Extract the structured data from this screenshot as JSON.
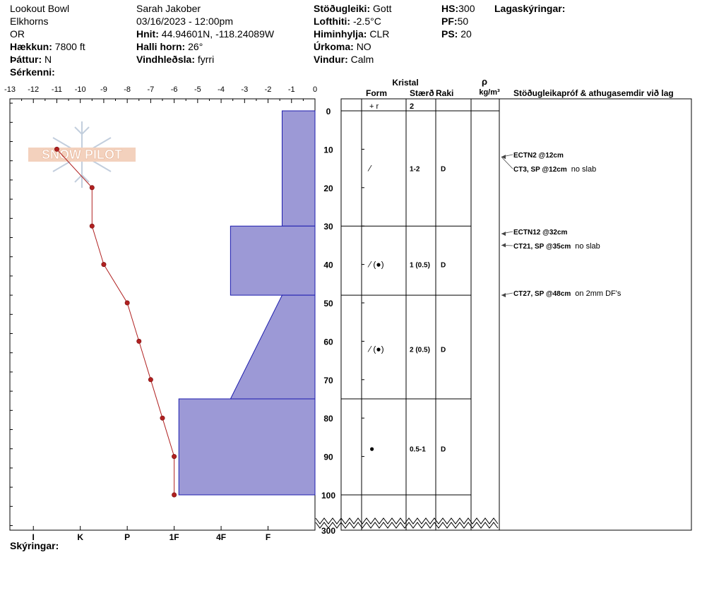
{
  "header": {
    "location": "Lookout Bowl",
    "range": "Elkhorns",
    "state": "OR",
    "elevation_label": "Hækkun:",
    "elevation": "7800 ft",
    "aspect_label": "Þáttur:",
    "aspect": "N",
    "specifics_label": "Sérkenni:",
    "observer": "Sarah Jakober",
    "datetime": "03/16/2023 - 12:00pm",
    "coords_label": "Hnit:",
    "coords": "44.94601N, -118.24089W",
    "slope_label": "Halli horn:",
    "slope": "26°",
    "wind_loading_label": "Vindhleðsla:",
    "wind_loading": "fyrri",
    "stability_label": "Stöðugleiki:",
    "stability": "Gott",
    "air_temp_label": "Lofthiti:",
    "air_temp": "-2.5°C",
    "sky_label": "Himinhylja:",
    "sky": "CLR",
    "precip_label": "Úrkoma:",
    "precip": "NO",
    "wind_label": "Vindur:",
    "wind": "Calm",
    "hs_label": "HS:",
    "hs": "300",
    "pf_label": "PF:",
    "pf": "50",
    "ps_label": "PS:",
    "ps": "20",
    "layer_notes_label": "Lagaskýringar:",
    "legend_label": "Skýringar:"
  },
  "columns": {
    "crystal": "Kristal",
    "form": "Form",
    "size": "Stærð",
    "moisture": "Raki",
    "rho": "ρ",
    "density_unit": "kg/m³",
    "tests": "Stöðugleikapróf & athugasemdir við lag"
  },
  "chart_data": {
    "type": "snow-profile",
    "temp_axis": {
      "ticks": [
        -13,
        -12,
        -11,
        -10,
        -9,
        -8,
        -7,
        -6,
        -5,
        -4,
        -3,
        -2,
        -1,
        0
      ]
    },
    "hardness_axis": {
      "labels": [
        "I",
        "K",
        "P",
        "1F",
        "4F",
        "F"
      ]
    },
    "depth_ticks": [
      0,
      10,
      20,
      30,
      40,
      50,
      60,
      70,
      80,
      90,
      100
    ],
    "bottom_depth_label": "300",
    "temperature_profile": [
      {
        "depth": 10,
        "temp": -11
      },
      {
        "depth": 20,
        "temp": -9.5
      },
      {
        "depth": 30,
        "temp": -9.5
      },
      {
        "depth": 40,
        "temp": -9
      },
      {
        "depth": 50,
        "temp": -8
      },
      {
        "depth": 60,
        "temp": -7.5
      },
      {
        "depth": 70,
        "temp": -7
      },
      {
        "depth": 80,
        "temp": -6.5
      },
      {
        "depth": 90,
        "temp": -6
      },
      {
        "depth": 100,
        "temp": -6
      }
    ],
    "hardness_profile": [
      {
        "top": 0,
        "bottom": 30,
        "hardness_top": -1.4,
        "hardness_bottom": -1.4
      },
      {
        "top": 30,
        "bottom": 48,
        "hardness_top": -3.6,
        "hardness_bottom": -3.6
      },
      {
        "top": 48,
        "bottom": 75,
        "hardness_top": -1.4,
        "hardness_bottom": -3.6
      },
      {
        "top": 75,
        "bottom": 100,
        "hardness_top": -5.8,
        "hardness_bottom": -5.8
      }
    ],
    "layer_boundaries": [
      30,
      48,
      75,
      100
    ],
    "top_row": {
      "form": "+ r",
      "size": "2"
    },
    "layers": [
      {
        "depth": 15,
        "form": "⁄",
        "size": "1-2",
        "moisture": "D"
      },
      {
        "depth": 40,
        "form": "⁄ (●)",
        "size": "1 (0.5)",
        "moisture": "D"
      },
      {
        "depth": 62,
        "form": "⁄ (●)",
        "size": "2 (0.5)",
        "moisture": "D"
      },
      {
        "depth": 88,
        "form": "●",
        "size": "0.5-1",
        "moisture": "D"
      }
    ],
    "tests": [
      {
        "depth": 12,
        "bold": "ECTN2 @12cm",
        "note": ""
      },
      {
        "depth": 12,
        "bold": "CT3, SP @12cm",
        "note": "no slab"
      },
      {
        "depth": 32,
        "bold": "ECTN12 @32cm",
        "note": ""
      },
      {
        "depth": 35,
        "bold": "CT21, SP @35cm",
        "note": "no slab"
      },
      {
        "depth": 48,
        "bold": "CT27, SP @48cm",
        "note": "on 2mm DF's"
      }
    ]
  }
}
